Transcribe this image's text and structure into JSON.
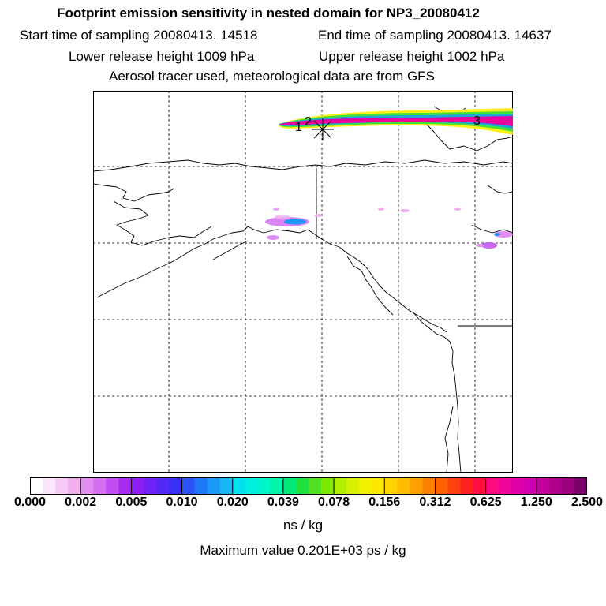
{
  "header": {
    "title": "Footprint emission sensitivity in nested domain for NP3_20080412",
    "start_time": "Start time of sampling 20080413. 14518",
    "end_time": "End time of sampling 20080413. 14637",
    "lower_release": "Lower release height 1009 hPa",
    "upper_release": "Upper release height 1002 hPa",
    "tracer_info": "Aerosol tracer used, meteorological data are from GFS"
  },
  "map": {
    "markers": [
      "1",
      "2",
      "3"
    ],
    "colors": {
      "coast": "#000000",
      "grid": "#000000",
      "plume_core": "#e8007a",
      "plume_edge": "#ffee00"
    }
  },
  "colorbar": {
    "ticks": [
      "0.000",
      "0.002",
      "0.005",
      "0.010",
      "0.020",
      "0.039",
      "0.078",
      "0.156",
      "0.312",
      "0.625",
      "1.250",
      "2.500"
    ],
    "units": "ns / kg",
    "max_value": "Maximum value  0.201E+03 ps / kg",
    "colors": [
      "#ffffff",
      "#fbe6fb",
      "#f6ccf6",
      "#f0b0f0",
      "#e28ef0",
      "#d36ff0",
      "#c24df2",
      "#a92bf2",
      "#8a1ef5",
      "#6f22f5",
      "#5428f5",
      "#3a30f5",
      "#2a55f5",
      "#1f78f5",
      "#1a98f5",
      "#15b8f5",
      "#00e0f0",
      "#00f0e0",
      "#00f5c8",
      "#00f5a8",
      "#00e878",
      "#20e040",
      "#50e020",
      "#80e800",
      "#b0f000",
      "#d6f000",
      "#f0f000",
      "#ffe800",
      "#ffd400",
      "#ffbc00",
      "#ffa000",
      "#ff8000",
      "#ff6000",
      "#ff4010",
      "#ff2020",
      "#ff1040",
      "#ff0880",
      "#f0049a",
      "#e000a8",
      "#d000b0",
      "#c4009c",
      "#b0008a",
      "#9a007a",
      "#7a006a"
    ]
  }
}
